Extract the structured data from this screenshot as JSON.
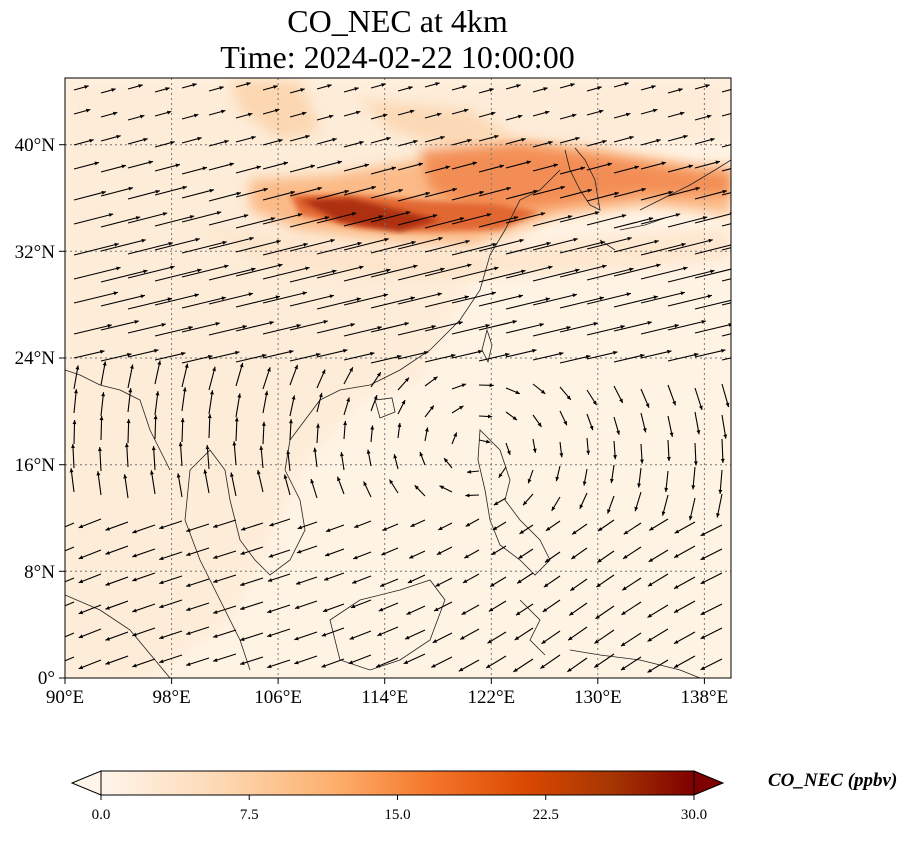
{
  "title": {
    "line1": "CO_NEC at 4km",
    "line2": "Time: 2024-02-22 10:00:00"
  },
  "map": {
    "lon_ticks": [
      "90°E",
      "98°E",
      "106°E",
      "114°E",
      "122°E",
      "130°E",
      "138°E"
    ],
    "lat_ticks": [
      "40°N",
      "32°N",
      "24°N",
      "16°N",
      "8°N",
      "0°"
    ],
    "lon_range": [
      90,
      140
    ],
    "lat_range": [
      0,
      45
    ],
    "gridlines": true
  },
  "colorbar": {
    "label": "CO_NEC (ppbv)",
    "ticks": [
      "0.0",
      "7.5",
      "15.0",
      "22.5",
      "30.0"
    ],
    "range": [
      0,
      30
    ],
    "extend": "both",
    "colormap": [
      "#fff5eb",
      "#fdd9b4",
      "#fdae6b",
      "#f5782c",
      "#d94801",
      "#a63603",
      "#7f0000"
    ]
  }
}
